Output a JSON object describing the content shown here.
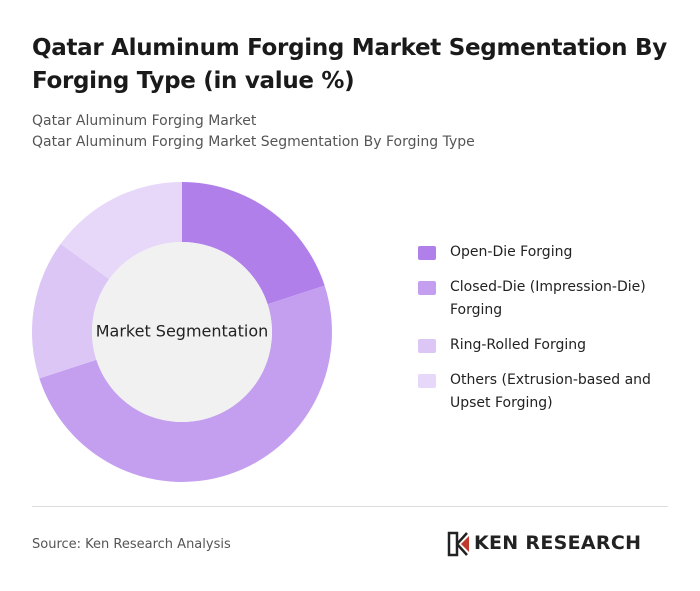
{
  "chart_data": {
    "type": "donut",
    "title": "Qatar Aluminum Forging Market Segmentation By Forging Type (in value %)",
    "subtitle": [
      "Qatar Aluminum Forging Market",
      "Qatar Aluminum Forging Market Segmentation By Forging Type"
    ],
    "center_label": "Market Segmentation",
    "categories": [
      "Open-Die Forging",
      "Closed-Die (Impression-Die) Forging",
      "Ring-Rolled Forging",
      "Others (Extrusion-based and Upset Forging)"
    ],
    "values": [
      20,
      50,
      15,
      15
    ],
    "colors": [
      "#b07fe9",
      "#c49ff0",
      "#dcc6f6",
      "#e7d8f9"
    ],
    "source": "Source: Ken Research Analysis",
    "brand": "KEN RESEARCH"
  }
}
